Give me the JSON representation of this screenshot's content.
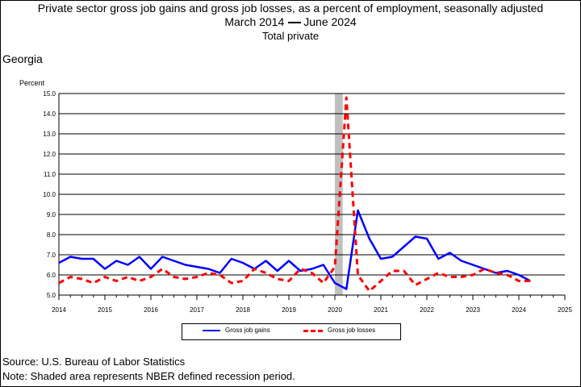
{
  "header": {
    "title": "Private sector gross job gains and gross job losses, as a percent of employment, seasonally adjusted",
    "date_start": "March 2014",
    "date_end": "June 2024",
    "subtitle": "Total private"
  },
  "region": "Georgia",
  "footer": {
    "source": "Source: U.S. Bureau of Labor Statistics",
    "note": "Note: Shaded area represents NBER defined recession period."
  },
  "chart_data": {
    "type": "line",
    "ylabel": "Percent",
    "xlabel": "",
    "xlim": [
      2014,
      2025
    ],
    "ylim": [
      5.0,
      15.0
    ],
    "yticks": [
      "5.0",
      "6.0",
      "7.0",
      "8.0",
      "9.0",
      "10.0",
      "11.0",
      "12.0",
      "13.0",
      "14.0",
      "15.0"
    ],
    "xticks": [
      "2014",
      "2015",
      "2016",
      "2017",
      "2018",
      "2019",
      "2020",
      "2021",
      "2022",
      "2023",
      "2024",
      "2025"
    ],
    "grid": "horizontal",
    "recession": {
      "start": 2020.0,
      "end": 2020.17,
      "color": "#bfbfbf"
    },
    "legend_placement": "bottom-center",
    "x": [
      2014.0,
      2014.25,
      2014.5,
      2014.75,
      2015.0,
      2015.25,
      2015.5,
      2015.75,
      2016.0,
      2016.25,
      2016.5,
      2016.75,
      2017.0,
      2017.25,
      2017.5,
      2017.75,
      2018.0,
      2018.25,
      2018.5,
      2018.75,
      2019.0,
      2019.25,
      2019.5,
      2019.75,
      2020.0,
      2020.25,
      2020.5,
      2020.75,
      2021.0,
      2021.25,
      2021.5,
      2021.75,
      2022.0,
      2022.25,
      2022.5,
      2022.75,
      2023.0,
      2023.25,
      2023.5,
      2023.75,
      2024.0,
      2024.25
    ],
    "series": [
      {
        "name": "Gross job gains",
        "color": "#0000ff",
        "style": "solid",
        "values": [
          6.6,
          6.9,
          6.8,
          6.8,
          6.3,
          6.7,
          6.5,
          6.9,
          6.3,
          6.9,
          6.7,
          6.5,
          6.4,
          6.3,
          6.1,
          6.8,
          6.6,
          6.3,
          6.7,
          6.2,
          6.7,
          6.2,
          6.3,
          6.5,
          5.6,
          5.3,
          9.2,
          7.8,
          6.8,
          6.9,
          7.4,
          7.9,
          7.8,
          6.8,
          7.1,
          6.7,
          6.5,
          6.3,
          6.1,
          6.2,
          6.0,
          5.7
        ]
      },
      {
        "name": "Gross job losses",
        "color": "#ff0000",
        "style": "dashed",
        "values": [
          5.6,
          5.9,
          5.8,
          5.6,
          5.9,
          5.7,
          5.9,
          5.7,
          5.9,
          6.3,
          5.9,
          5.8,
          5.9,
          6.1,
          6.0,
          5.6,
          5.7,
          6.3,
          6.1,
          5.8,
          5.7,
          6.3,
          6.1,
          5.6,
          6.4,
          14.8,
          6.0,
          5.2,
          5.7,
          6.2,
          6.2,
          5.5,
          5.8,
          6.1,
          5.9,
          5.9,
          6.0,
          6.3,
          6.1,
          6.0,
          5.7,
          5.7
        ]
      }
    ]
  }
}
